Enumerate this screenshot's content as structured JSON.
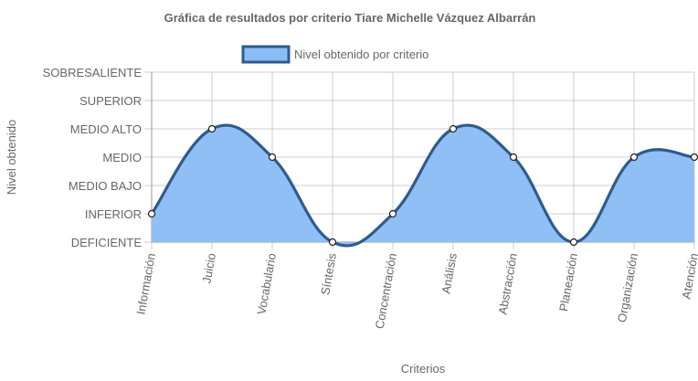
{
  "chart_data": {
    "type": "area",
    "title": "Gráfica de resultados por criterio Tiare Michelle Vázquez Albarrán",
    "xlabel": "Criterios",
    "ylabel": "Nivel obtenido",
    "categories": [
      "Información",
      "Juicio",
      "Vocabulario",
      "Síntesis",
      "Concentración",
      "Análisis",
      "Abstracción",
      "Planeación",
      "Organización",
      "Atención"
    ],
    "y_levels": [
      "DEFICIENTE",
      "INFERIOR",
      "MEDIO BAJO",
      "MEDIO",
      "MEDIO ALTO",
      "SUPERIOR",
      "SOBRESALIENTE"
    ],
    "ylim": [
      0,
      6
    ],
    "series": [
      {
        "name": "Nivel obtenido por criterio",
        "values": [
          1,
          4,
          3,
          0,
          1,
          4,
          3,
          0,
          3,
          3
        ],
        "value_labels": [
          "INFERIOR",
          "MEDIO ALTO",
          "MEDIO",
          "DEFICIENTE",
          "INFERIOR",
          "MEDIO ALTO",
          "MEDIO",
          "DEFICIENTE",
          "MEDIO",
          "MEDIO"
        ]
      }
    ],
    "grid": true,
    "legend": "top",
    "colors": {
      "fill": "#8abcf5",
      "stroke": "#2f5b8c",
      "point_fill": "#ffffff",
      "grid": "#cccccc",
      "axis": "#999999"
    }
  }
}
